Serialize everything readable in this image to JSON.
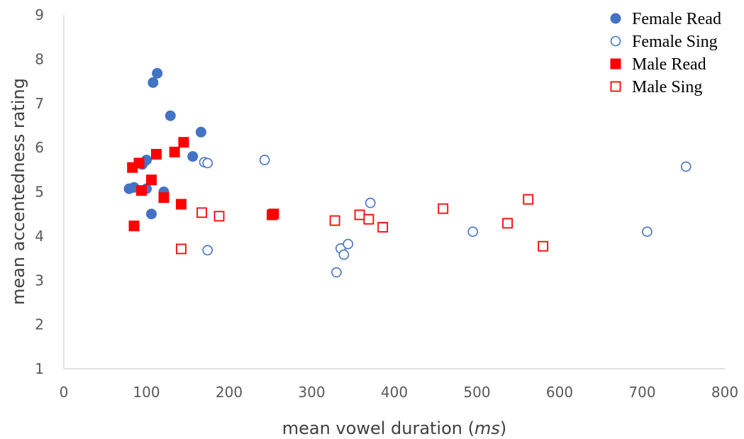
{
  "chart_data": {
    "type": "scatter",
    "title": "",
    "xlabel": "mean vowel duration (",
    "xlabel_unit": "ms",
    "xlabel_close": ")",
    "ylabel": "mean accentedness rating",
    "xlim": [
      0,
      800
    ],
    "ylim": [
      1,
      9
    ],
    "x_ticks": [
      0,
      100,
      200,
      300,
      400,
      500,
      600,
      700,
      800
    ],
    "y_ticks": [
      1,
      2,
      3,
      4,
      5,
      6,
      7,
      8,
      9
    ],
    "grid": false,
    "legend_position": "top-right",
    "series": [
      {
        "name": "Female Read",
        "marker": "circle-filled",
        "color": "#4472C4",
        "points": [
          [
            79,
            5.07
          ],
          [
            85,
            5.1
          ],
          [
            95,
            5.62
          ],
          [
            100,
            5.72
          ],
          [
            100,
            5.07
          ],
          [
            106,
            4.5
          ],
          [
            108,
            7.47
          ],
          [
            113,
            7.68
          ],
          [
            121,
            5.0
          ],
          [
            129,
            6.72
          ],
          [
            156,
            5.8
          ],
          [
            166,
            6.35
          ]
        ]
      },
      {
        "name": "Female Sing",
        "marker": "circle-open",
        "color": "#4472C4",
        "points": [
          [
            170,
            5.67
          ],
          [
            174,
            5.65
          ],
          [
            174,
            3.68
          ],
          [
            243,
            5.72
          ],
          [
            330,
            3.18
          ],
          [
            335,
            3.72
          ],
          [
            339,
            3.58
          ],
          [
            344,
            3.82
          ],
          [
            371,
            4.75
          ],
          [
            495,
            4.1
          ],
          [
            706,
            4.1
          ],
          [
            753,
            5.57
          ]
        ]
      },
      {
        "name": "Male Read",
        "marker": "square-filled",
        "color": "#FF0000",
        "points": [
          [
            83,
            5.55
          ],
          [
            85,
            4.23
          ],
          [
            91,
            5.65
          ],
          [
            94,
            5.03
          ],
          [
            106,
            5.27
          ],
          [
            112,
            5.85
          ],
          [
            121,
            4.87
          ],
          [
            134,
            5.9
          ],
          [
            142,
            4.72
          ],
          [
            145,
            6.12
          ],
          [
            252,
            4.48
          ],
          [
            254,
            4.5
          ]
        ]
      },
      {
        "name": "Male Sing",
        "marker": "square-open",
        "color": "#FF0000",
        "points": [
          [
            142,
            3.71
          ],
          [
            167,
            4.53
          ],
          [
            188,
            4.45
          ],
          [
            328,
            4.35
          ],
          [
            358,
            4.48
          ],
          [
            369,
            4.38
          ],
          [
            386,
            4.2
          ],
          [
            459,
            4.62
          ],
          [
            537,
            4.29
          ],
          [
            562,
            4.83
          ],
          [
            580,
            3.77
          ]
        ]
      }
    ]
  }
}
